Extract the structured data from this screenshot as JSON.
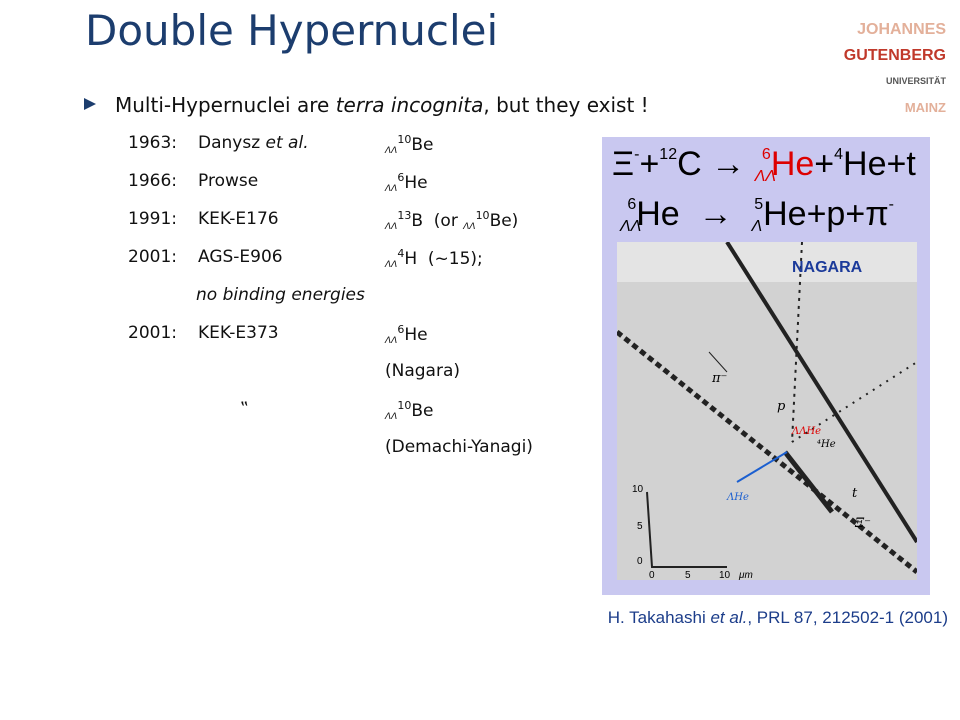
{
  "header": {
    "title": "Double Hypernuclei",
    "logo": [
      "JOHANNES",
      "GUTENBERG",
      "UNIVERSITÄT",
      "MAINZ"
    ]
  },
  "bullet": {
    "before": "Multi-Hypernuclei are ",
    "italic": "terra incognita",
    "after": ", but they exist !"
  },
  "list": [
    {
      "year": "1963:",
      "name": "Danysz ",
      "name_italic": "et al.",
      "sub": "ΛΛ",
      "sup": "10",
      "el": "Be"
    },
    {
      "year": "1966:",
      "name": "Prowse",
      "sub": "ΛΛ",
      "sup": "6",
      "el": "He"
    },
    {
      "year": "1991:",
      "name": "KEK-E176",
      "sub": "ΛΛ",
      "sup": "13",
      "el": "B  (or ",
      "sub2": "ΛΛ",
      "sup2": "10",
      "el2": "Be)"
    },
    {
      "year": "2001:",
      "name": "AGS-E906",
      "sub": "ΛΛ",
      "sup": "4",
      "el": "H  (~15);"
    },
    {
      "note": "no binding energies"
    },
    {
      "year": "2001:",
      "name": "KEK-E373",
      "sub": "ΛΛ",
      "sup": "6",
      "el": "He"
    },
    {
      "note": "(Nagara)"
    },
    {
      "ditto": "‟",
      "sub": "ΛΛ",
      "sup": "10",
      "el": "Be"
    },
    {
      "note": "(Demachi-Yanagi)"
    }
  ],
  "figure": {
    "eq1": {
      "xi": "Ξ",
      "minus": "-",
      "plus": "+",
      "sup": "12",
      "c": "C",
      "arrow": "→",
      "sub": "ΛΛ",
      "sup2": "6",
      "he": "He",
      "plus2": "+",
      "sup3": "4",
      "rest": "He+t"
    },
    "eq2": {
      "sub": "ΛΛ",
      "sup": "6",
      "he": "He",
      "arrow": "→",
      "sub2": "Λ",
      "sup2": "5",
      "rest": "He+p+π",
      "minus": "-"
    },
    "label": "NAGARA",
    "tracks": [
      "π⁻",
      "p",
      "ΛΛHe",
      "⁴He",
      "ΛHe",
      "t",
      "Ξ⁻"
    ],
    "axis": [
      "10",
      "5",
      "0",
      "0",
      "5",
      "10",
      "μm"
    ]
  },
  "citation": {
    "before": "H. Takahashi ",
    "italic": "et al.",
    "after": ", PRL 87, 212502-1 (2001)"
  }
}
